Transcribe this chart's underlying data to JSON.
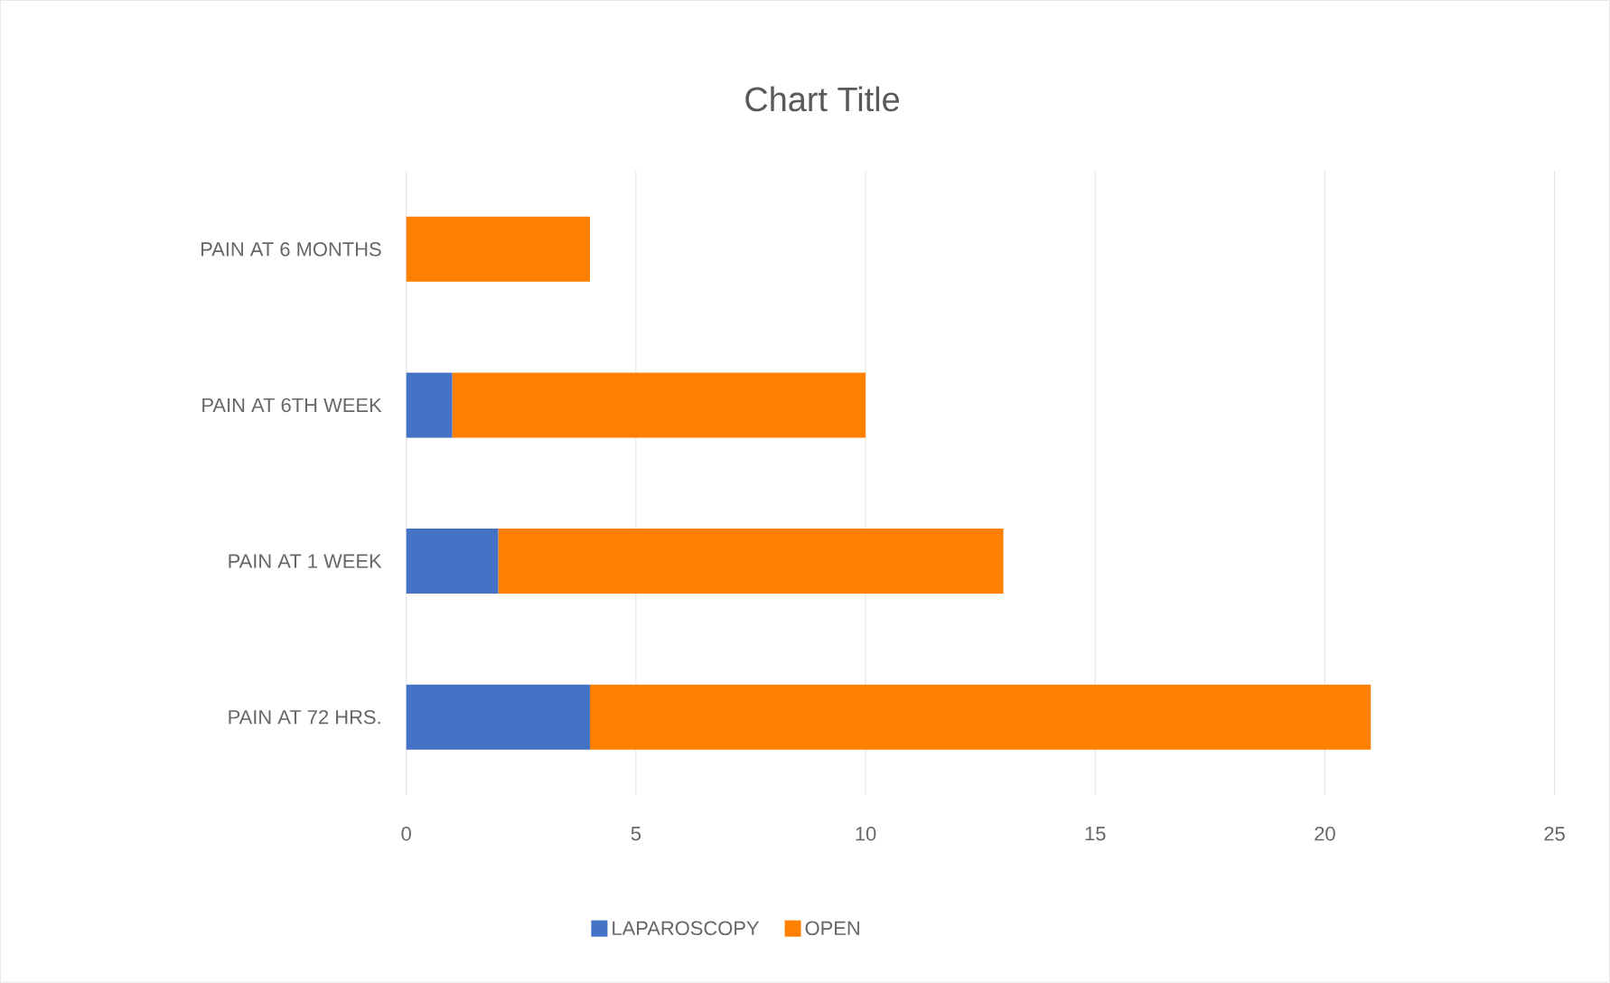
{
  "chart_data": {
    "type": "bar",
    "orientation": "horizontal",
    "stacked": true,
    "title": "Chart Title",
    "categories": [
      "PAIN AT 6 MONTHS",
      "PAIN AT 6TH WEEK",
      "PAIN AT 1 WEEK",
      "PAIN AT 72 HRS."
    ],
    "series": [
      {
        "name": "LAPAROSCOPY",
        "color": "#4472c4",
        "values": [
          0,
          1,
          2,
          4
        ]
      },
      {
        "name": "OPEN",
        "color": "#ff7f00",
        "values": [
          4,
          9,
          11,
          17
        ]
      }
    ],
    "xlim": [
      0,
      25
    ],
    "xticks": [
      0,
      5,
      10,
      15,
      20,
      25
    ],
    "grid": "x",
    "legend": "bottom"
  }
}
